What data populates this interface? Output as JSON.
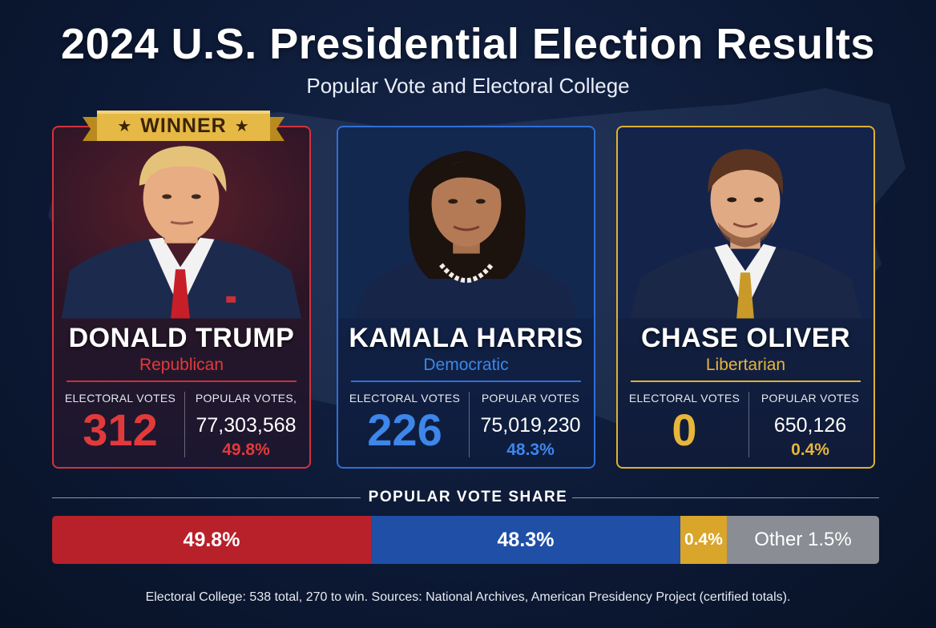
{
  "title": "2024 U.S. Presidential Election Results",
  "subtitle": "Popular Vote and Electoral College",
  "winner_label": "WINNER",
  "candidates": [
    {
      "name": "DONALD TRUMP",
      "party": "Republican",
      "electoral_label": "ELECTORAL VOTES",
      "electoral_votes": "312",
      "popular_label": "POPULAR VOTES,",
      "popular_votes": "77,303,568",
      "popular_pct": "49.8%",
      "color": "#d2323c",
      "winner": true
    },
    {
      "name": "KAMALA HARRIS",
      "party": "Democratic",
      "electoral_label": "ELECTORAL VOTES",
      "electoral_votes": "226",
      "popular_label": "POPULAR VOTES",
      "popular_votes": "75,019,230",
      "popular_pct": "48.3%",
      "color": "#2f6fd8",
      "winner": false
    },
    {
      "name": "CHASE OLIVER",
      "party": "Libertarian",
      "electoral_label": "ELECTORAL VOTES",
      "electoral_votes": "0",
      "popular_label": "POPULAR VOTES",
      "popular_votes": "650,126",
      "popular_pct": "0.4%",
      "color": "#e0b032",
      "winner": false
    }
  ],
  "share": {
    "header": "POPULAR VOTE SHARE",
    "segments": [
      {
        "label": "49.8%",
        "value": 49.8,
        "color": "#b8202a"
      },
      {
        "label": "48.3%",
        "value": 48.3,
        "color": "#1f4fa6"
      },
      {
        "label": "0.4%",
        "value": 0.4,
        "color": "#d9a52a"
      },
      {
        "label": "Other 1.5%",
        "value": 1.5,
        "color": "#8a8d94"
      }
    ]
  },
  "footer": "Electoral College: 538 total, 270 to win.  Sources: National Archives, American Presidency Project (certified totals)."
}
